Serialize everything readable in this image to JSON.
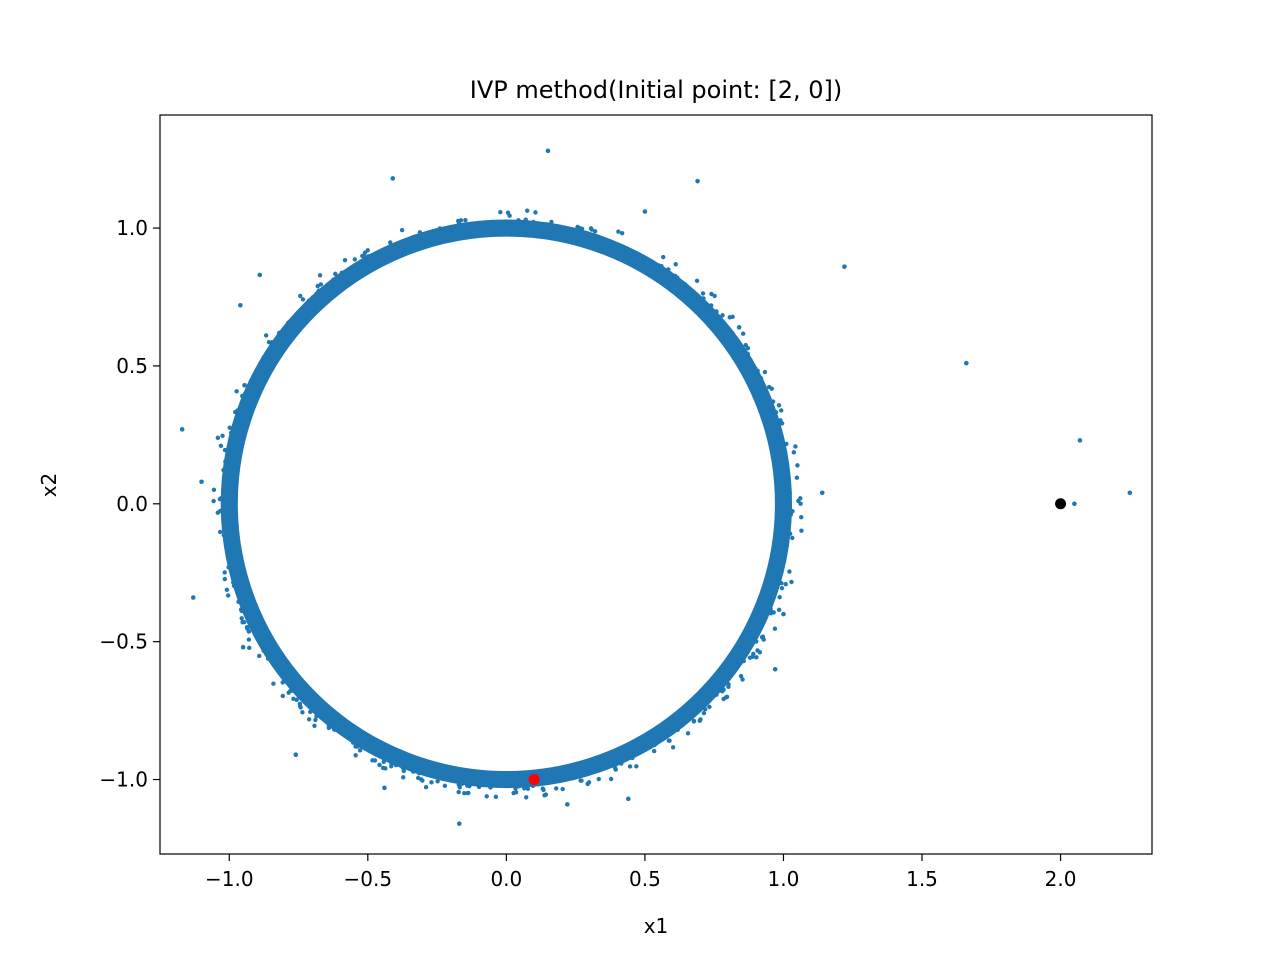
{
  "chart_data": {
    "type": "scatter",
    "title": "IVP method(Initial point: [2, 0])",
    "xlabel": "x1",
    "ylabel": "x2",
    "xlim": [
      -1.25,
      2.33
    ],
    "ylim": [
      -1.27,
      1.41
    ],
    "xticks": [
      -1.0,
      -0.5,
      0.0,
      0.5,
      1.0,
      1.5,
      2.0
    ],
    "xtick_labels": [
      "−1.0",
      "−0.5",
      "0.0",
      "0.5",
      "1.0",
      "1.5",
      "2.0"
    ],
    "yticks": [
      -1.0,
      -0.5,
      0.0,
      0.5,
      1.0
    ],
    "ytick_labels": [
      "−1.0",
      "−0.5",
      "0.0",
      "0.5",
      "1.0"
    ],
    "grid": false,
    "series": [
      {
        "kind": "limit-cycle-ring",
        "color": "#1f77b4",
        "center": [
          0.0,
          0.0
        ],
        "radius_range": [
          0.98,
          1.02
        ],
        "note_points": "dense ring of trajectory points around the unit circle"
      },
      {
        "kind": "outliers",
        "color": "#1f77b4",
        "points": [
          [
            0.15,
            1.28
          ],
          [
            -0.41,
            1.18
          ],
          [
            0.69,
            1.17
          ],
          [
            1.22,
            0.86
          ],
          [
            -0.89,
            0.83
          ],
          [
            1.66,
            0.51
          ],
          [
            -1.17,
            0.27
          ],
          [
            2.07,
            0.23
          ],
          [
            2.25,
            0.04
          ],
          [
            1.14,
            0.04
          ],
          [
            2.05,
            0.0
          ],
          [
            -1.13,
            -0.34
          ],
          [
            -0.76,
            -0.91
          ],
          [
            -0.17,
            -1.16
          ],
          [
            0.22,
            -1.09
          ],
          [
            0.44,
            -1.07
          ],
          [
            -0.44,
            -1.03
          ],
          [
            0.97,
            -0.6
          ],
          [
            -0.95,
            -0.52
          ],
          [
            1.0,
            -0.4
          ],
          [
            -1.1,
            0.08
          ],
          [
            0.84,
            0.64
          ],
          [
            -0.96,
            0.72
          ],
          [
            0.5,
            1.06
          ]
        ]
      },
      {
        "kind": "initial-point",
        "color": "#000000",
        "points": [
          [
            2.0,
            0.0
          ]
        ]
      },
      {
        "kind": "final-point",
        "color": "#ff0000",
        "points": [
          [
            0.1,
            -1.0
          ]
        ]
      }
    ]
  }
}
